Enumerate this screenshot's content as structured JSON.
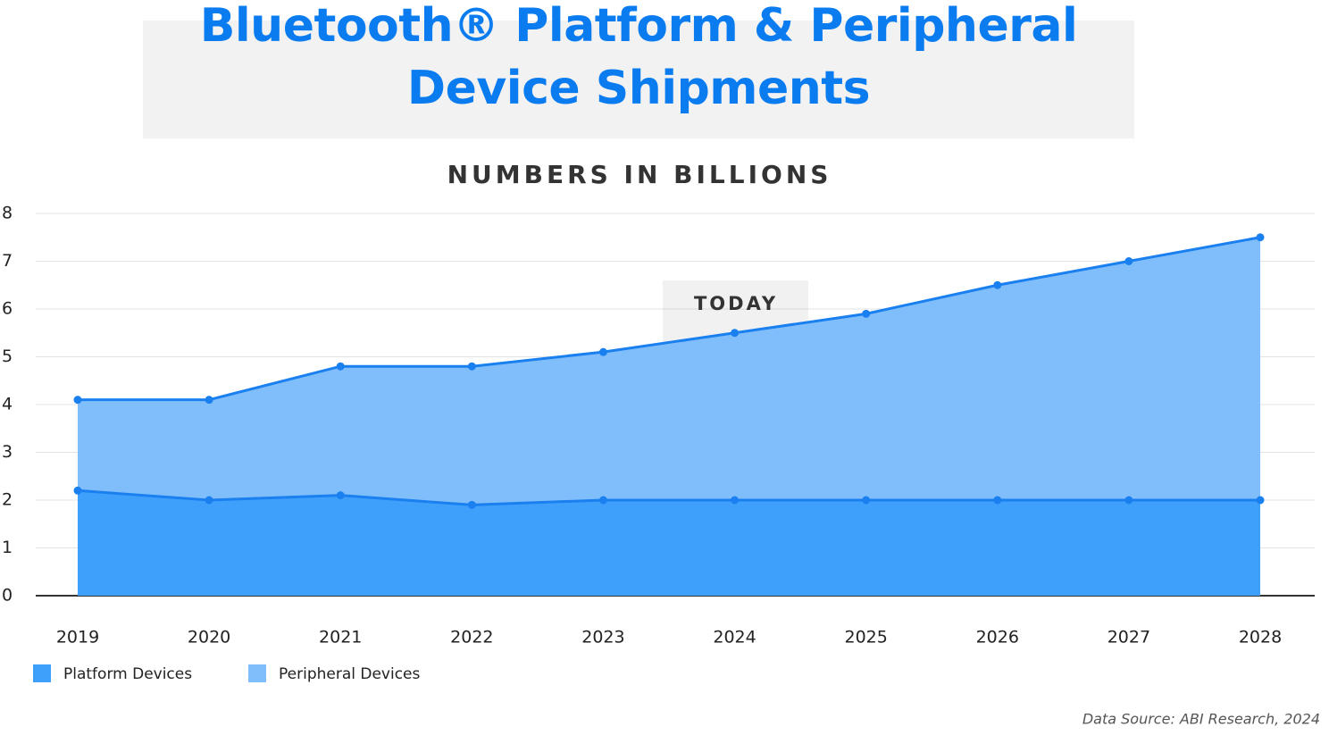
{
  "chart_data": {
    "type": "stacked_area",
    "title": "Bluetooth® Platform & Peripheral Device Shipments",
    "subtitle": "NUMBERS IN BILLIONS",
    "annotation": "TODAY",
    "source": "Data Source: ABI Research, 2024",
    "categories": [
      "2019",
      "2020",
      "2021",
      "2022",
      "2023",
      "2024",
      "2025",
      "2026",
      "2027",
      "2028"
    ],
    "series": [
      {
        "name": "Platform Devices",
        "color": "#3fa0fb",
        "values": [
          2.2,
          2.0,
          2.1,
          1.9,
          2.0,
          2.0,
          2.0,
          2.0,
          2.0,
          2.0
        ]
      },
      {
        "name": "Peripheral Devices",
        "color": "#80befb",
        "values": [
          1.9,
          2.1,
          2.7,
          2.9,
          3.1,
          3.5,
          3.9,
          4.5,
          5.0,
          5.5
        ]
      }
    ],
    "line_color": "#1a80f0",
    "ylim": [
      0,
      8
    ],
    "yticks": [
      0,
      1,
      2,
      3,
      4,
      5,
      6,
      7,
      8
    ],
    "grid": true
  }
}
